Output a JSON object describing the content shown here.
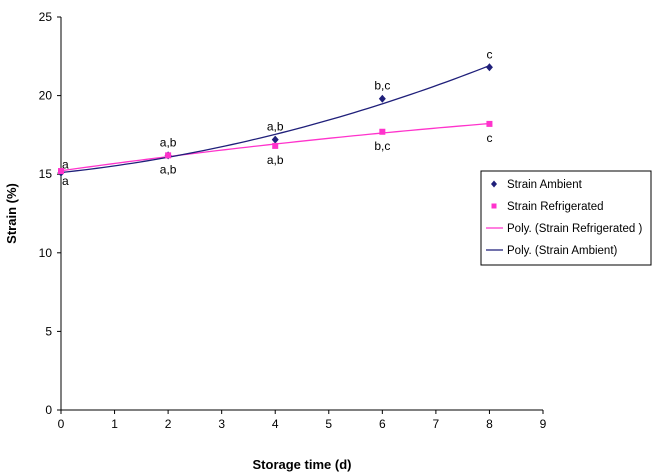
{
  "chart_data": {
    "type": "scatter",
    "title": "",
    "xlabel": "Storage time (d)",
    "ylabel": "Strain (%)",
    "xlim": [
      0,
      9
    ],
    "ylim": [
      0,
      25
    ],
    "xticks": [
      0,
      1,
      2,
      3,
      4,
      5,
      6,
      7,
      8,
      9
    ],
    "yticks": [
      0,
      5,
      10,
      15,
      20,
      25
    ],
    "grid": false,
    "legend_position": "right",
    "series": [
      {
        "name": "Strain Ambient",
        "kind": "points",
        "marker": "diamond",
        "color": "#1f1f7a",
        "x": [
          0,
          2,
          4,
          6,
          8
        ],
        "y": [
          15.1,
          16.2,
          17.2,
          19.8,
          21.8
        ],
        "labels": [
          "a",
          "a,b",
          "a,b",
          "b,c",
          "c"
        ]
      },
      {
        "name": "Strain Refrigerated",
        "kind": "points",
        "marker": "square",
        "color": "#ff33cc",
        "x": [
          0,
          2,
          4,
          6,
          8
        ],
        "y": [
          15.2,
          16.2,
          16.8,
          17.7,
          18.2
        ],
        "labels": [
          "a",
          "a,b",
          "a,b",
          "b,c",
          "c"
        ]
      },
      {
        "name": "Poly. (Strain Refrigerated )",
        "kind": "trend",
        "color": "#ff33cc",
        "fit_of": "Strain Refrigerated"
      },
      {
        "name": "Poly. (Strain Ambient)",
        "kind": "trend",
        "color": "#1f1f7a",
        "fit_of": "Strain Ambient"
      }
    ]
  }
}
